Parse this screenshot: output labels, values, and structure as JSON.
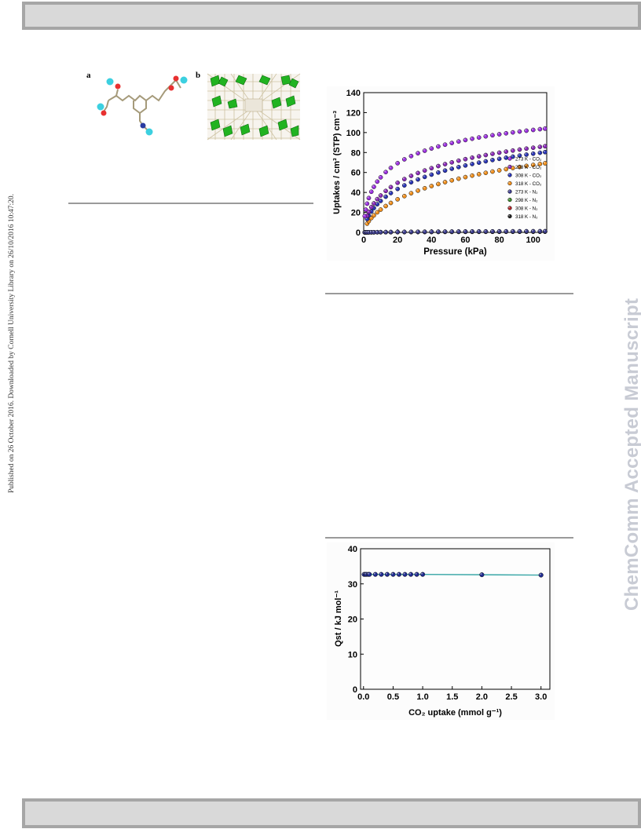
{
  "side_text": "Published on 26 October 2016. Downloaded by Cornell University Library on 26/10/2016 10:47:20.",
  "watermark": "ChemComm Accepted Manuscript",
  "figure1": {
    "panel_a": "a",
    "panel_b": "b"
  },
  "chart_data": [
    {
      "type": "scatter",
      "title": "",
      "xlabel": "Pressure (kPa)",
      "ylabel": "Uptakes / cm³ (STP) cm⁻³",
      "xlim": [
        0,
        108
      ],
      "ylim": [
        0,
        140
      ],
      "xticks": [
        0,
        20,
        40,
        60,
        80,
        100
      ],
      "yticks": [
        0,
        20,
        40,
        60,
        80,
        100,
        120,
        140
      ],
      "legend_position": "right",
      "series": [
        {
          "name": "273 K - CO₂",
          "color": "#9b30e0",
          "a": 155.0,
          "b": 0.034,
          "c": 0.55,
          "pmin": 0.6
        },
        {
          "name": "298 K - CO₂",
          "color": "#8a2ab8",
          "a": 150.0,
          "b": 0.0155,
          "c": 0.6,
          "pmin": 1.5
        },
        {
          "name": "308 K - CO₂",
          "color": "#2a35b5",
          "a": 150.0,
          "b": 0.0118,
          "c": 0.62,
          "pmin": 1.5
        },
        {
          "name": "318 K - CO₂",
          "color": "#f0901e",
          "a": 150.0,
          "b": 0.0074,
          "c": 0.66,
          "pmin": 1.5
        },
        {
          "name": "273 K - N₂",
          "color": "#3c3c8c",
          "a": 2.3,
          "b": 0.01,
          "c": 0.9,
          "pmin": 0.6
        },
        {
          "name": "298 K - N₂",
          "color": "#3d8a2a",
          "a": 1.9,
          "b": 0.01,
          "c": 0.9,
          "pmin": 0.6
        },
        {
          "name": "308 K - N₂",
          "color": "#b0262a",
          "a": 1.6,
          "b": 0.01,
          "c": 0.9,
          "pmin": 0.6
        },
        {
          "name": "318 K - N₂",
          "color": "#222222",
          "a": 1.3,
          "b": 0.01,
          "c": 0.9,
          "pmin": 0.6
        }
      ]
    },
    {
      "type": "line",
      "title": "",
      "xlabel": "CO₂ uptake (mmol g⁻¹)",
      "ylabel": "Qst / kJ mol⁻¹",
      "xlim": [
        -0.05,
        3.15
      ],
      "ylim": [
        0,
        40
      ],
      "xticks": [
        0.0,
        0.5,
        1.0,
        1.5,
        2.0,
        2.5,
        3.0
      ],
      "yticks": [
        0,
        10,
        20,
        30,
        40
      ],
      "line_color": "#3aa7a7",
      "marker_color": "#1f2a90",
      "x": [
        0.01,
        0.03,
        0.05,
        0.08,
        0.1,
        0.2,
        0.3,
        0.4,
        0.5,
        0.6,
        0.7,
        0.8,
        0.9,
        1.0,
        2.0,
        3.0
      ],
      "y": [
        32.7,
        32.7,
        32.7,
        32.7,
        32.7,
        32.7,
        32.7,
        32.7,
        32.7,
        32.7,
        32.7,
        32.7,
        32.7,
        32.7,
        32.6,
        32.5
      ]
    }
  ]
}
